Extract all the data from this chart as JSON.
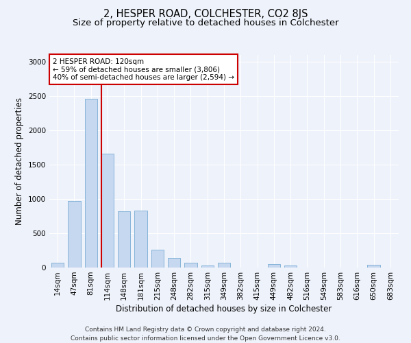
{
  "title": "2, HESPER ROAD, COLCHESTER, CO2 8JS",
  "subtitle": "Size of property relative to detached houses in Colchester",
  "xlabel": "Distribution of detached houses by size in Colchester",
  "ylabel": "Number of detached properties",
  "categories": [
    "14sqm",
    "47sqm",
    "81sqm",
    "114sqm",
    "148sqm",
    "181sqm",
    "215sqm",
    "248sqm",
    "282sqm",
    "315sqm",
    "349sqm",
    "382sqm",
    "415sqm",
    "449sqm",
    "482sqm",
    "516sqm",
    "549sqm",
    "583sqm",
    "616sqm",
    "650sqm",
    "683sqm"
  ],
  "values": [
    75,
    975,
    2460,
    1660,
    825,
    830,
    265,
    140,
    75,
    30,
    75,
    0,
    0,
    55,
    30,
    0,
    0,
    0,
    0,
    45,
    0
  ],
  "bar_color": "#c5d8f0",
  "bar_edge_color": "#7aadd4",
  "annotation_line1": "2 HESPER ROAD: 120sqm",
  "annotation_line2": "← 59% of detached houses are smaller (3,806)",
  "annotation_line3": "40% of semi-detached houses are larger (2,594) →",
  "annotation_box_facecolor": "#ffffff",
  "annotation_box_edgecolor": "#cc0000",
  "red_line_color": "#cc0000",
  "footer_line1": "Contains HM Land Registry data © Crown copyright and database right 2024.",
  "footer_line2": "Contains public sector information licensed under the Open Government Licence v3.0.",
  "ylim": [
    0,
    3100
  ],
  "yticks": [
    0,
    500,
    1000,
    1500,
    2000,
    2500,
    3000
  ],
  "background_color": "#eef2fa",
  "grid_color": "#ffffff",
  "title_fontsize": 10.5,
  "subtitle_fontsize": 9.5,
  "axis_label_fontsize": 8.5,
  "tick_fontsize": 7.5,
  "footer_fontsize": 6.5,
  "red_line_bin_index": 3,
  "bar_width": 0.75
}
